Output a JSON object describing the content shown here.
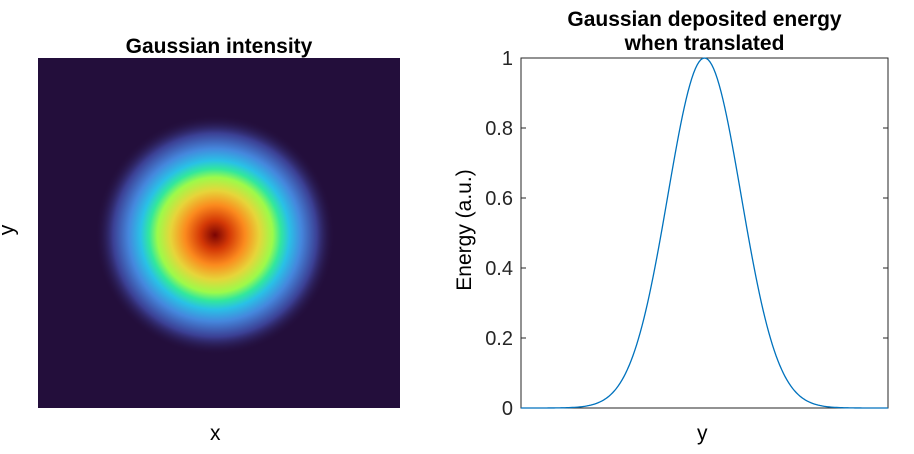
{
  "chart_data": [
    {
      "type": "heatmap",
      "title": "Gaussian intensity",
      "xlabel": "x",
      "ylabel": "y",
      "colormap": "turbo",
      "peak": "center",
      "colors": {
        "background": "#230e3b",
        "stops": [
          "#230e3b",
          "#3b3f93",
          "#4587dd",
          "#29c1e6",
          "#32e79d",
          "#9dfa4a",
          "#e6d53a",
          "#fb8a1e",
          "#d33806",
          "#7a0403"
        ]
      }
    },
    {
      "type": "line",
      "title": "Gaussian deposited energy\nwhen translated",
      "title_lines": [
        "Gaussian deposited energy",
        "when translated"
      ],
      "xlabel": "y",
      "ylabel": "Energy (a.u.)",
      "ylim": [
        0,
        1
      ],
      "yticks": [
        "0",
        "0.2",
        "0.4",
        "0.6",
        "0.8",
        "1"
      ],
      "grid": false,
      "series": [
        {
          "color": "#0072bd",
          "x": [
            0,
            0.05,
            0.1,
            0.15,
            0.2,
            0.25,
            0.3,
            0.35,
            0.4,
            0.45,
            0.5,
            0.55,
            0.6,
            0.65,
            0.7,
            0.75,
            0.8,
            0.85,
            0.9,
            0.95,
            1
          ],
          "values": [
            0,
            0,
            0,
            0.001,
            0.01,
            0.05,
            0.16,
            0.36,
            0.62,
            0.87,
            1.0,
            0.87,
            0.62,
            0.36,
            0.16,
            0.05,
            0.01,
            0.001,
            0,
            0,
            0
          ]
        }
      ]
    }
  ]
}
